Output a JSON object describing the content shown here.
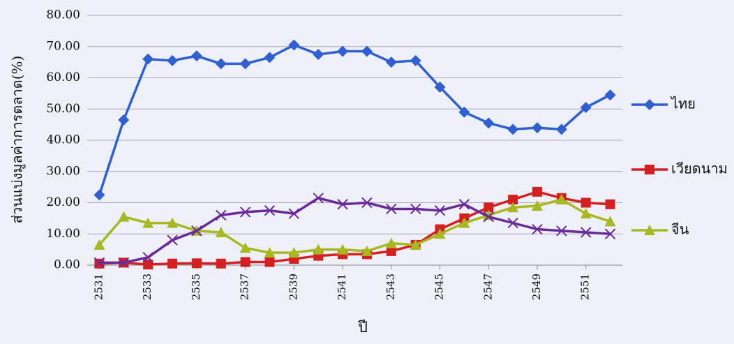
{
  "chart_data": {
    "type": "line",
    "x_label": "ปี",
    "y_label": "ส่วนแบ่งมูลค่าการตลาด(%)",
    "x": [
      2531,
      2532,
      2533,
      2534,
      2535,
      2536,
      2537,
      2538,
      2539,
      2540,
      2541,
      2542,
      2543,
      2544,
      2545,
      2546,
      2547,
      2548,
      2549,
      2550,
      2551,
      2552
    ],
    "xlim": [
      2530.5,
      2552.5
    ],
    "xticks": [
      2531,
      2533,
      2535,
      2537,
      2539,
      2541,
      2543,
      2545,
      2547,
      2549,
      2551
    ],
    "ylim": [
      0,
      80
    ],
    "yticks": [
      {
        "value": 0,
        "label": "0.00"
      },
      {
        "value": 10,
        "label": "10.00"
      },
      {
        "value": 20,
        "label": "20.00"
      },
      {
        "value": 30,
        "label": "30.00"
      },
      {
        "value": 40,
        "label": "40.00"
      },
      {
        "value": 50,
        "label": "50.00"
      },
      {
        "value": 60,
        "label": "60.00"
      },
      {
        "value": 70,
        "label": "70.00"
      },
      {
        "value": 80,
        "label": "80.00"
      }
    ],
    "grid": true,
    "legend": "right",
    "series": [
      {
        "name": "ไทย",
        "color": "#2f5fd0",
        "marker": "diamond",
        "values": [
          22.5,
          46.5,
          66,
          65.5,
          67,
          64.5,
          64.5,
          66.5,
          70.5,
          67.5,
          68.5,
          68.5,
          65,
          65.5,
          57,
          49,
          45.5,
          43.5,
          44,
          43.5,
          50.5,
          54.5
        ]
      },
      {
        "name": "เวียดนาม",
        "color": "#d42020",
        "marker": "square",
        "values": [
          0.5,
          0.8,
          0.2,
          0.5,
          0.6,
          0.5,
          1,
          1,
          2,
          3,
          3.5,
          3.5,
          4.5,
          6.5,
          11.5,
          15,
          18.5,
          21,
          23.5,
          21.5,
          20,
          19.5
        ]
      },
      {
        "name": "จีน",
        "color": "#a8b820",
        "marker": "triangle",
        "values": [
          6.5,
          15.5,
          13.5,
          13.5,
          11,
          10.5,
          5.5,
          4,
          4,
          5,
          5,
          4.5,
          7,
          6.5,
          10,
          13.5,
          16,
          18.5,
          19,
          21,
          16.5,
          14
        ]
      },
      {
        "color": "#6a2a9a",
        "marker": "x",
        "values": [
          0.8,
          0.8,
          2.5,
          8,
          11,
          16,
          17,
          17.5,
          16.5,
          21.5,
          19.5,
          20,
          18,
          18,
          17.5,
          19.5,
          15.5,
          13.5,
          11.5,
          11,
          10.5,
          10
        ]
      }
    ]
  }
}
